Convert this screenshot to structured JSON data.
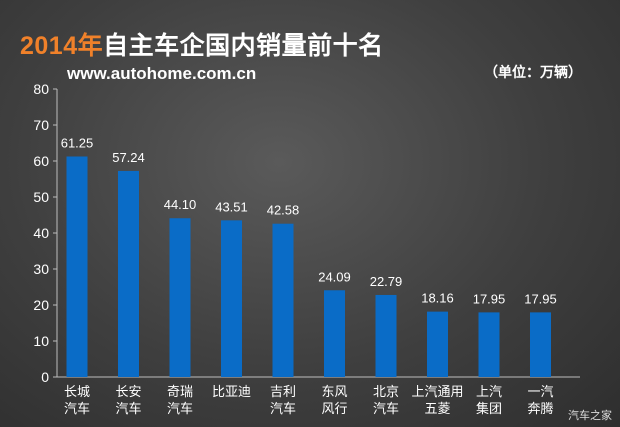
{
  "header": {
    "title_year": "2014年",
    "title_rest": "自主车企国内销量前十名",
    "site": "www.autohome.com.cn",
    "unit": "（单位：万辆）"
  },
  "watermark": "汽车之家",
  "chart_data": {
    "type": "bar",
    "title": "2014年自主车企国内销量前十名",
    "ylabel": "",
    "xlabel": "",
    "ylim": [
      0,
      80
    ],
    "yticks": [
      0,
      10,
      20,
      30,
      40,
      50,
      60,
      70,
      80
    ],
    "grid": false,
    "categories": [
      [
        "长城",
        "汽车"
      ],
      [
        "长安",
        "汽车"
      ],
      [
        "奇瑞",
        "汽车"
      ],
      [
        "比亚迪"
      ],
      [
        "吉利",
        "汽车"
      ],
      [
        "东风",
        "风行"
      ],
      [
        "北京",
        "汽车"
      ],
      [
        "上汽通用",
        "五菱"
      ],
      [
        "上汽",
        "集团"
      ],
      [
        "一汽",
        "奔腾"
      ]
    ],
    "values": [
      61.25,
      57.24,
      44.1,
      43.51,
      42.58,
      24.09,
      22.79,
      18.16,
      17.95,
      17.95
    ],
    "value_labels": [
      "61.25",
      "57.24",
      "44.10",
      "43.51",
      "42.58",
      "24.09",
      "22.79",
      "18.16",
      "17.95",
      "17.95"
    ],
    "bar_color": "#0a6cc7"
  }
}
